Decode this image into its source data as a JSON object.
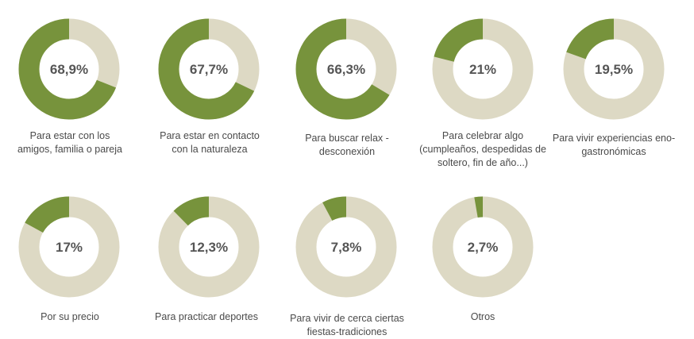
{
  "colors": {
    "filled": "#77933c",
    "remaining": "#ddd9c4",
    "text": "#555555"
  },
  "chart_data": {
    "type": "donut",
    "value_unit": "%",
    "items": [
      {
        "category": "Para estar con los\namigos, familia o pareja",
        "value": 68.9,
        "label": "68,9%"
      },
      {
        "category": "Para estar en contacto\ncon la naturaleza",
        "value": 67.7,
        "label": "67,7%"
      },
      {
        "category": "Para buscar relax -\ndesconexión",
        "value": 66.3,
        "label": "66,3%"
      },
      {
        "category": "Para celebrar algo\n(cumpleaños, despedidas de\nsoltero, fin de año...)",
        "value": 21,
        "label": "21%"
      },
      {
        "category": "Para vivir experiencias eno-\ngastronómicas",
        "value": 19.5,
        "label": "19,5%"
      },
      {
        "category": "Por su precio",
        "value": 17,
        "label": "17%"
      },
      {
        "category": "Para practicar deportes",
        "value": 12.3,
        "label": "12,3%"
      },
      {
        "category": "Para vivir de cerca ciertas\nfiestas-tradiciones",
        "value": 7.8,
        "label": "7,8%"
      },
      {
        "category": "Otros",
        "value": 2.7,
        "label": "2,7%"
      }
    ]
  }
}
